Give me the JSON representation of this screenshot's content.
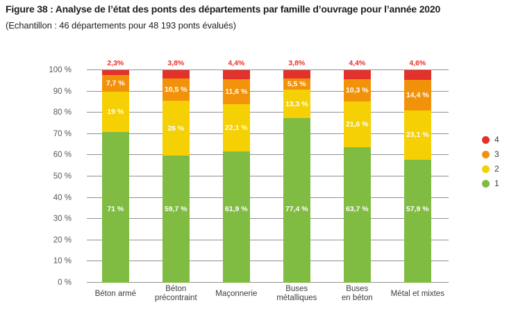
{
  "header": {
    "title": "Figure 38 : Analyse de l’état des ponts des départements par famille d’ouvrage pour l’année 2020",
    "subtitle": "(Echantillon : 46 départements pour 48 193 ponts évalués)"
  },
  "chart_data": {
    "type": "bar",
    "stacked": true,
    "categories": [
      "Béton armé",
      "Béton\nprécontraint",
      "Maçonnerie",
      "Buses\nmétalliques",
      "Buses\nen béton",
      "Métal et mixtes"
    ],
    "series": [
      {
        "name": "1",
        "color": "#80bb42",
        "values": [
          71,
          59.7,
          61.9,
          77.4,
          63.7,
          57.9
        ],
        "labels": [
          "71 %",
          "59,7 %",
          "61,9 %",
          "77,4 %",
          "63,7 %",
          "57,9 %"
        ],
        "labels_position": "inside-fixed"
      },
      {
        "name": "2",
        "color": "#f5d004",
        "values": [
          19,
          26,
          22.1,
          13.3,
          21.6,
          23.1
        ],
        "labels": [
          "19 %",
          "26 %",
          "22,1 %",
          "13,3 %",
          "21,6 %",
          "23,1 %"
        ],
        "labels_position": "inside-center"
      },
      {
        "name": "3",
        "color": "#f2920b",
        "values": [
          7.7,
          10.5,
          11.6,
          5.5,
          10.3,
          14.4
        ],
        "labels": [
          "7,7 %",
          "10,5 %",
          "11,6 %",
          "5,5 %",
          "10,3 %",
          "14,4 %"
        ],
        "labels_position": "inside-center"
      },
      {
        "name": "4",
        "color": "#e3322b",
        "values": [
          2.3,
          3.8,
          4.4,
          3.8,
          4.4,
          4.6
        ],
        "labels": [
          "2,3%",
          "3,8%",
          "4,4%",
          "3,8%",
          "4,4%",
          "4,6%"
        ],
        "labels_position": "above"
      }
    ],
    "y_ticks": [
      "0 %",
      "10 %",
      "20 %",
      "30 %",
      "40 %",
      "50 %",
      "60 %",
      "70 %",
      "80 %",
      "90 %",
      "100 %"
    ],
    "ylim": [
      0,
      100
    ],
    "grid": true,
    "legend": {
      "position": "right",
      "entries": [
        {
          "label": "4",
          "color": "#e3322b"
        },
        {
          "label": "3",
          "color": "#f2920b"
        },
        {
          "label": "2",
          "color": "#f5d004"
        },
        {
          "label": "1",
          "color": "#80bb42"
        }
      ]
    }
  },
  "colors": {
    "grid": "#8f8f8f",
    "axis_text": "#575756",
    "category_text": "#3c3c3b",
    "title_text": "#1d1d1b",
    "label_above": "#e5322b",
    "label_inside": "#ffffff"
  }
}
